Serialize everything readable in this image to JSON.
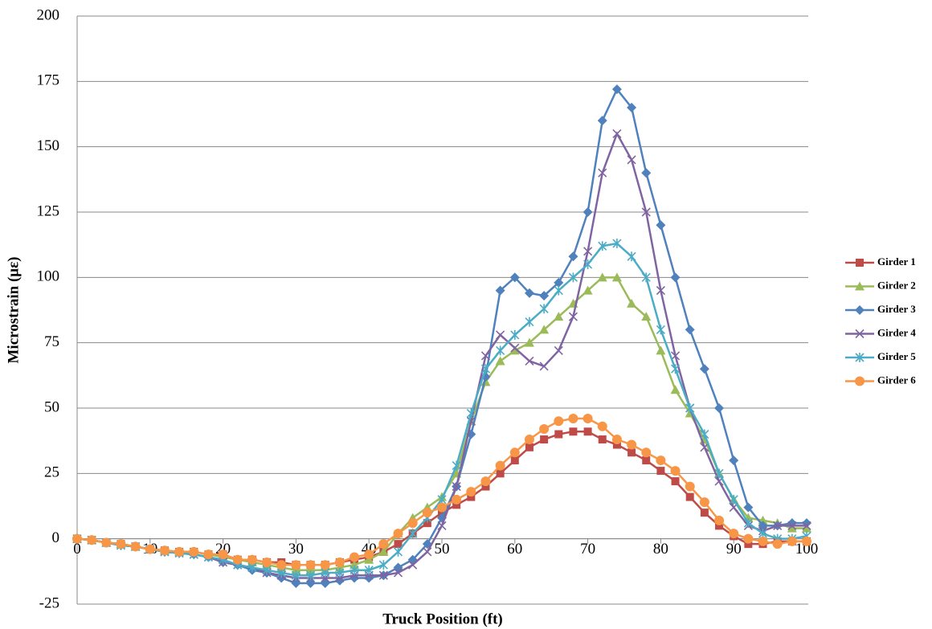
{
  "chart_data": {
    "type": "line",
    "xlabel": "Truck Position (ft)",
    "ylabel": "Microstrain (με)",
    "x": [
      0,
      2,
      4,
      6,
      8,
      10,
      12,
      14,
      16,
      18,
      20,
      22,
      24,
      26,
      28,
      30,
      32,
      34,
      36,
      38,
      40,
      42,
      44,
      46,
      48,
      50,
      52,
      54,
      56,
      58,
      60,
      62,
      64,
      66,
      68,
      70,
      72,
      74,
      76,
      78,
      80,
      82,
      84,
      86,
      88,
      90,
      92,
      94,
      96,
      98,
      100
    ],
    "xlim": [
      0,
      100
    ],
    "xticks": [
      0,
      10,
      20,
      30,
      40,
      50,
      60,
      70,
      80,
      90,
      100
    ],
    "ylim": [
      -25,
      200
    ],
    "yticks": [
      -25,
      0,
      25,
      50,
      75,
      100,
      125,
      150,
      175,
      200
    ],
    "grid": true,
    "legend": "right",
    "series": [
      {
        "name": "Girder 1",
        "color": "#be4b48",
        "marker": "square",
        "values": [
          0,
          -0.5,
          -1.5,
          -2,
          -3,
          -4,
          -4.5,
          -5,
          -5,
          -6,
          -6,
          -8,
          -8,
          -9,
          -9,
          -10,
          -10,
          -10,
          -9,
          -8,
          -7,
          -5,
          -2,
          2,
          6,
          10,
          13,
          16,
          20,
          25,
          30,
          35,
          38,
          40,
          41,
          41,
          38,
          36,
          33,
          30,
          26,
          22,
          16,
          10,
          5,
          1,
          -2,
          -2,
          -1,
          -1,
          -1
        ]
      },
      {
        "name": "Girder 2",
        "color": "#9bbb59",
        "marker": "triangle",
        "values": [
          0,
          -0.5,
          -1.5,
          -2,
          -3,
          -4,
          -4.5,
          -5,
          -5,
          -6,
          -7,
          -8,
          -9,
          -10,
          -11,
          -12,
          -12,
          -12,
          -11,
          -10,
          -8,
          -5,
          2,
          8,
          12,
          16,
          25,
          45,
          60,
          68,
          72,
          75,
          80,
          85,
          90,
          95,
          100,
          100,
          90,
          85,
          72,
          57,
          48,
          38,
          25,
          15,
          8,
          7,
          6,
          4,
          4
        ]
      },
      {
        "name": "Girder 3",
        "color": "#4f81bd",
        "marker": "diamond",
        "values": [
          0,
          -0.5,
          -1.5,
          -2.5,
          -3,
          -4,
          -5,
          -5.5,
          -6,
          -7,
          -9,
          -10,
          -12,
          -13,
          -15,
          -17,
          -17,
          -17,
          -16,
          -15,
          -15,
          -14,
          -11,
          -8,
          -2,
          8,
          20,
          40,
          62,
          95,
          100,
          94,
          93,
          98,
          108,
          125,
          160,
          172,
          165,
          140,
          120,
          100,
          80,
          65,
          50,
          30,
          12,
          5,
          5,
          6,
          6
        ]
      },
      {
        "name": "Girder 4",
        "color": "#8064a2",
        "marker": "x",
        "values": [
          0,
          -0.5,
          -1.5,
          -2.5,
          -3,
          -4,
          -5,
          -5.5,
          -6,
          -7,
          -9,
          -10,
          -11,
          -13,
          -14,
          -15,
          -15,
          -15,
          -15,
          -14,
          -14,
          -14,
          -13,
          -10,
          -5,
          5,
          20,
          45,
          70,
          78,
          73,
          68,
          66,
          72,
          85,
          110,
          140,
          155,
          145,
          125,
          95,
          70,
          50,
          35,
          22,
          12,
          5,
          3,
          5,
          5,
          5
        ]
      },
      {
        "name": "Girder 5",
        "color": "#4bacc6",
        "marker": "star",
        "values": [
          0,
          -0.5,
          -1.5,
          -2.5,
          -3,
          -4,
          -5,
          -5.5,
          -6,
          -7,
          -8,
          -10,
          -11,
          -12,
          -13,
          -14,
          -14,
          -13,
          -13,
          -12,
          -12,
          -10,
          -5,
          2,
          8,
          15,
          28,
          48,
          65,
          72,
          78,
          83,
          88,
          95,
          100,
          105,
          112,
          113,
          108,
          100,
          80,
          65,
          50,
          40,
          25,
          15,
          6,
          2,
          0,
          0,
          1
        ]
      },
      {
        "name": "Girder 6",
        "color": "#f79646",
        "marker": "circle",
        "values": [
          0,
          -0.5,
          -1.5,
          -2,
          -3,
          -4,
          -4.5,
          -5,
          -5,
          -6,
          -6,
          -8,
          -8,
          -9,
          -10,
          -10,
          -10,
          -10,
          -9,
          -7,
          -6,
          -2,
          2,
          6,
          10,
          12,
          15,
          18,
          22,
          28,
          33,
          38,
          42,
          45,
          46,
          46,
          43,
          38,
          36,
          33,
          30,
          26,
          20,
          14,
          7,
          2,
          0,
          -1,
          -2,
          -1,
          -1
        ]
      }
    ]
  }
}
